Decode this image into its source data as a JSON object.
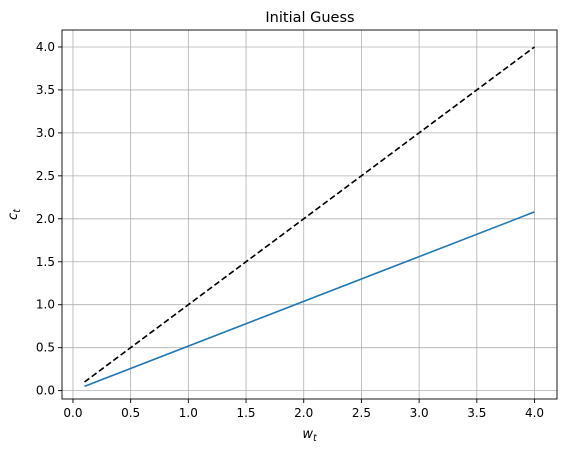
{
  "chart_data": {
    "type": "line",
    "title": "Initial Guess",
    "xlabel": {
      "base": "w",
      "sub": "t"
    },
    "ylabel": {
      "base": "c",
      "sub": "t"
    },
    "xlim": [
      -0.095,
      4.195
    ],
    "ylim": [
      -0.0975,
      4.1975
    ],
    "xticks": [
      0.0,
      0.5,
      1.0,
      1.5,
      2.0,
      2.5,
      3.0,
      3.5,
      4.0
    ],
    "xtick_labels": [
      "0.0",
      "0.5",
      "1.0",
      "1.5",
      "2.0",
      "2.5",
      "3.0",
      "3.5",
      "4.0"
    ],
    "yticks": [
      0.0,
      0.5,
      1.0,
      1.5,
      2.0,
      2.5,
      3.0,
      3.5,
      4.0
    ],
    "ytick_labels": [
      "0.0",
      "0.5",
      "1.0",
      "1.5",
      "2.0",
      "2.5",
      "3.0",
      "3.5",
      "4.0"
    ],
    "grid": true,
    "legend": false,
    "series": [
      {
        "style": "dashed",
        "color": "#000000",
        "x": [
          0.1,
          4.0
        ],
        "y": [
          0.1,
          4.0
        ]
      },
      {
        "style": "solid",
        "color": "#1f77b4",
        "x": [
          0.1,
          4.0
        ],
        "y": [
          0.05,
          2.08
        ]
      }
    ]
  }
}
